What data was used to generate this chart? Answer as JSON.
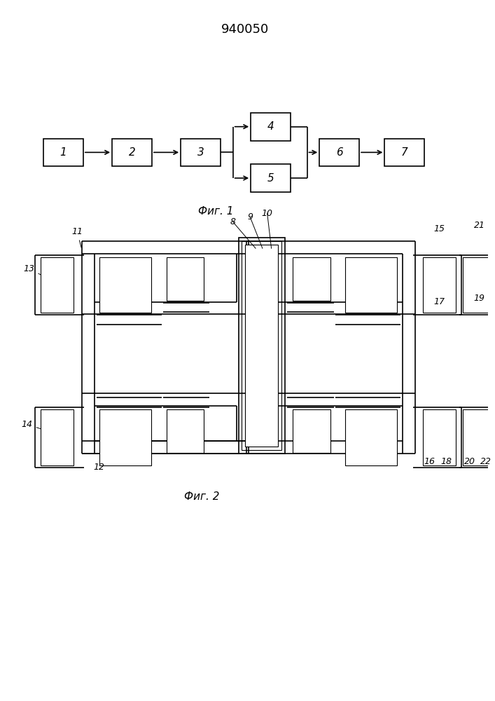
{
  "title": "940050",
  "fig1_label": "Фиг. 1",
  "fig2_label": "Фиг. 2",
  "bg_color": "#ffffff",
  "lc": "#000000"
}
